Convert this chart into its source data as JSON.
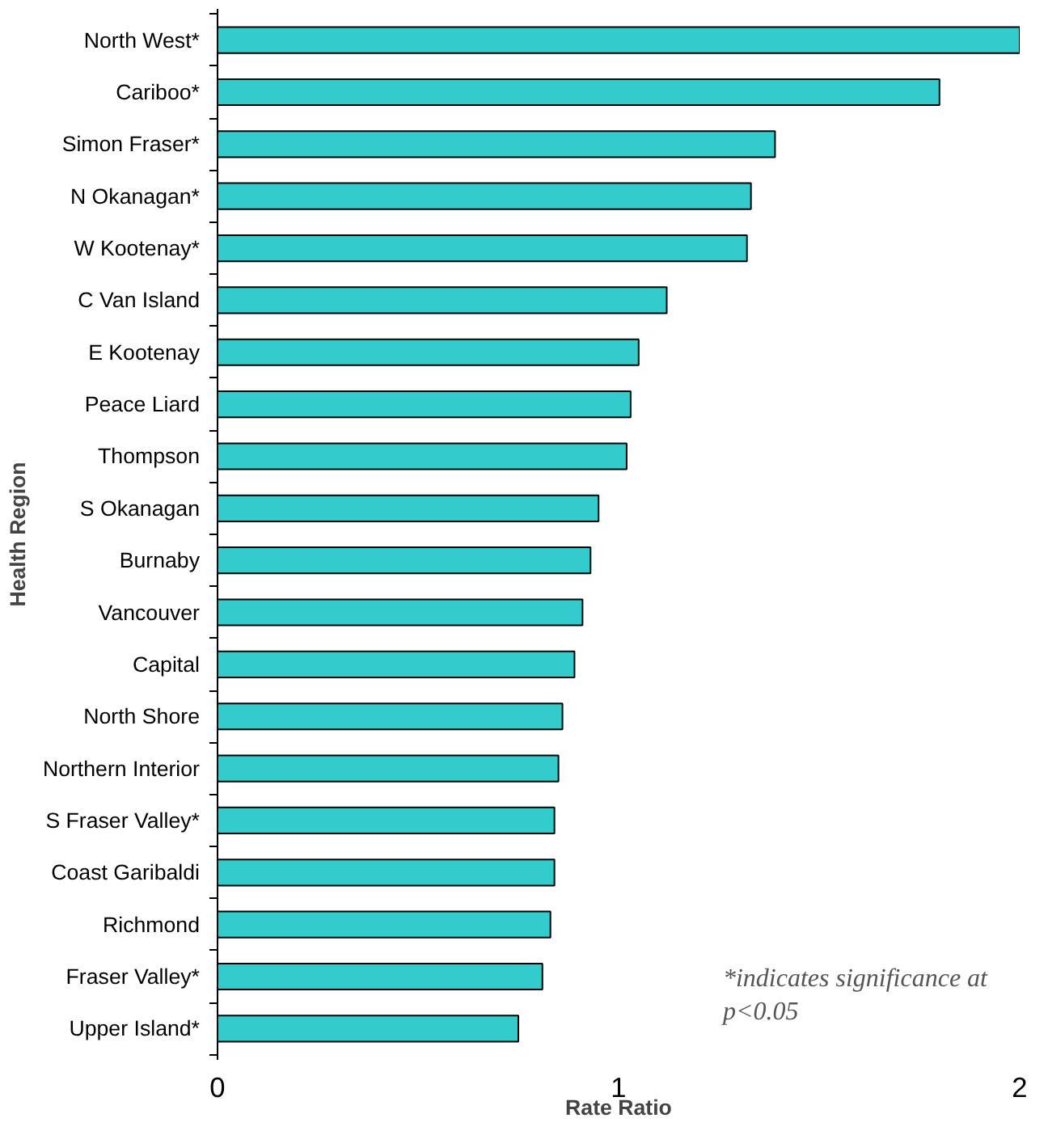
{
  "chart_data": {
    "type": "bar",
    "orientation": "horizontal",
    "xlabel": "Rate Ratio",
    "ylabel": "Health Region",
    "categories": [
      "North West*",
      "Cariboo*",
      "Simon Fraser*",
      "N Okanagan*",
      "W Kootenay*",
      "C Van Island",
      "E Kootenay",
      "Peace Liard",
      "Thompson",
      "S Okanagan",
      "Burnaby",
      "Vancouver",
      "Capital",
      "North Shore",
      "Northern Interior",
      "S Fraser Valley*",
      "Coast Garibaldi",
      "Richmond",
      "Fraser Valley*",
      "Upper Island*"
    ],
    "values": [
      2.0,
      1.8,
      1.39,
      1.33,
      1.32,
      1.12,
      1.05,
      1.03,
      1.02,
      0.95,
      0.93,
      0.91,
      0.89,
      0.86,
      0.85,
      0.84,
      0.84,
      0.83,
      0.81,
      0.75
    ],
    "color": "#33cccc",
    "xlim": [
      0,
      2
    ],
    "xticks": [
      0,
      1,
      2
    ],
    "grid": false,
    "annotations": [
      "*indicates significance at\n p<0.05"
    ]
  }
}
